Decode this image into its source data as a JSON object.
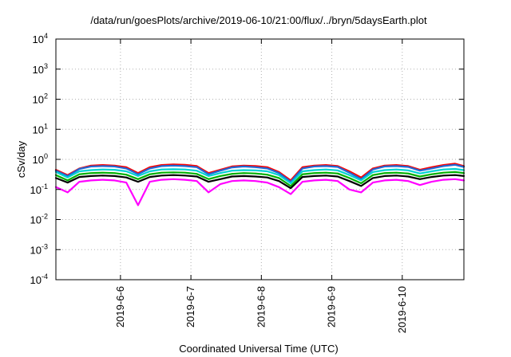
{
  "chart_data": {
    "type": "line",
    "title": "/data/run/goesPlots/archive/2019-06-10/21:00/flux/../bryn/5daysEarth.plot",
    "xlabel": "Coordinated Universal Time (UTC)",
    "ylabel": "cSv/day",
    "yscale": "log",
    "ylim": [
      0.0001,
      10000
    ],
    "xlim": [
      "2019-06-05T02:00",
      "2019-06-10T21:00"
    ],
    "grid": true,
    "legend": "none",
    "x_ticks": [
      {
        "value": "2019-06-06T00:00",
        "label": "2019-6-6"
      },
      {
        "value": "2019-06-07T00:00",
        "label": "2019-6-7"
      },
      {
        "value": "2019-06-08T00:00",
        "label": "2019-6-8"
      },
      {
        "value": "2019-06-09T00:00",
        "label": "2019-6-9"
      },
      {
        "value": "2019-06-10T00:00",
        "label": "2019-6-10"
      }
    ],
    "y_ticks": [
      {
        "value": 0.0001,
        "base": "10",
        "exp": "-4"
      },
      {
        "value": 0.001,
        "base": "10",
        "exp": "-3"
      },
      {
        "value": 0.01,
        "base": "10",
        "exp": "-2"
      },
      {
        "value": 0.1,
        "base": "10",
        "exp": "-1"
      },
      {
        "value": 1,
        "base": "10",
        "exp": "0"
      },
      {
        "value": 10,
        "base": "10",
        "exp": "1"
      },
      {
        "value": 100,
        "base": "10",
        "exp": "2"
      },
      {
        "value": 1000,
        "base": "10",
        "exp": "3"
      },
      {
        "value": 10000,
        "base": "10",
        "exp": "4"
      }
    ],
    "x": [
      "2019-06-05T02:00",
      "2019-06-05T06:00",
      "2019-06-05T10:00",
      "2019-06-05T14:00",
      "2019-06-05T18:00",
      "2019-06-05T22:00",
      "2019-06-06T02:00",
      "2019-06-06T06:00",
      "2019-06-06T10:00",
      "2019-06-06T14:00",
      "2019-06-06T18:00",
      "2019-06-06T22:00",
      "2019-06-07T02:00",
      "2019-06-07T06:00",
      "2019-06-07T10:00",
      "2019-06-07T14:00",
      "2019-06-07T18:00",
      "2019-06-07T22:00",
      "2019-06-08T02:00",
      "2019-06-08T06:00",
      "2019-06-08T10:00",
      "2019-06-08T14:00",
      "2019-06-08T18:00",
      "2019-06-08T22:00",
      "2019-06-09T02:00",
      "2019-06-09T06:00",
      "2019-06-09T10:00",
      "2019-06-09T14:00",
      "2019-06-09T18:00",
      "2019-06-09T22:00",
      "2019-06-10T02:00",
      "2019-06-10T06:00",
      "2019-06-10T10:00",
      "2019-06-10T14:00",
      "2019-06-10T18:00",
      "2019-06-10T21:00"
    ],
    "series": [
      {
        "color": "#ff0000",
        "values": [
          0.45,
          0.3,
          0.5,
          0.62,
          0.65,
          0.62,
          0.55,
          0.35,
          0.55,
          0.65,
          0.68,
          0.66,
          0.6,
          0.35,
          0.45,
          0.58,
          0.62,
          0.6,
          0.55,
          0.38,
          0.2,
          0.55,
          0.62,
          0.65,
          0.6,
          0.4,
          0.25,
          0.5,
          0.62,
          0.65,
          0.6,
          0.45,
          0.55,
          0.65,
          0.72,
          0.6
        ]
      },
      {
        "color": "#1e6ad6",
        "values": [
          0.42,
          0.28,
          0.48,
          0.58,
          0.6,
          0.58,
          0.5,
          0.32,
          0.5,
          0.6,
          0.62,
          0.6,
          0.55,
          0.32,
          0.42,
          0.54,
          0.58,
          0.55,
          0.5,
          0.35,
          0.18,
          0.5,
          0.58,
          0.6,
          0.56,
          0.36,
          0.22,
          0.46,
          0.58,
          0.6,
          0.56,
          0.42,
          0.5,
          0.6,
          0.66,
          0.56
        ]
      },
      {
        "color": "#00d2d2",
        "values": [
          0.38,
          0.25,
          0.4,
          0.44,
          0.46,
          0.45,
          0.4,
          0.28,
          0.4,
          0.46,
          0.47,
          0.46,
          0.42,
          0.28,
          0.35,
          0.42,
          0.44,
          0.43,
          0.4,
          0.3,
          0.16,
          0.4,
          0.44,
          0.46,
          0.43,
          0.3,
          0.2,
          0.38,
          0.44,
          0.46,
          0.43,
          0.34,
          0.4,
          0.46,
          0.48,
          0.44
        ]
      },
      {
        "color": "#00b000",
        "values": [
          0.3,
          0.2,
          0.32,
          0.35,
          0.36,
          0.35,
          0.31,
          0.22,
          0.32,
          0.36,
          0.37,
          0.36,
          0.33,
          0.22,
          0.28,
          0.33,
          0.35,
          0.34,
          0.31,
          0.24,
          0.13,
          0.32,
          0.35,
          0.36,
          0.34,
          0.24,
          0.16,
          0.3,
          0.35,
          0.36,
          0.34,
          0.27,
          0.32,
          0.36,
          0.38,
          0.35
        ]
      },
      {
        "color": "#000000",
        "values": [
          0.24,
          0.17,
          0.26,
          0.28,
          0.29,
          0.28,
          0.25,
          0.18,
          0.26,
          0.29,
          0.3,
          0.29,
          0.27,
          0.18,
          0.22,
          0.27,
          0.28,
          0.27,
          0.25,
          0.19,
          0.11,
          0.26,
          0.28,
          0.29,
          0.27,
          0.19,
          0.13,
          0.24,
          0.28,
          0.29,
          0.27,
          0.22,
          0.26,
          0.29,
          0.3,
          0.28
        ]
      },
      {
        "color": "#ff00ff",
        "values": [
          0.12,
          0.08,
          0.18,
          0.2,
          0.21,
          0.2,
          0.17,
          0.03,
          0.18,
          0.21,
          0.22,
          0.21,
          0.19,
          0.08,
          0.15,
          0.19,
          0.2,
          0.19,
          0.17,
          0.12,
          0.07,
          0.18,
          0.2,
          0.21,
          0.19,
          0.1,
          0.08,
          0.17,
          0.2,
          0.21,
          0.19,
          0.14,
          0.18,
          0.21,
          0.22,
          0.2
        ]
      }
    ]
  }
}
